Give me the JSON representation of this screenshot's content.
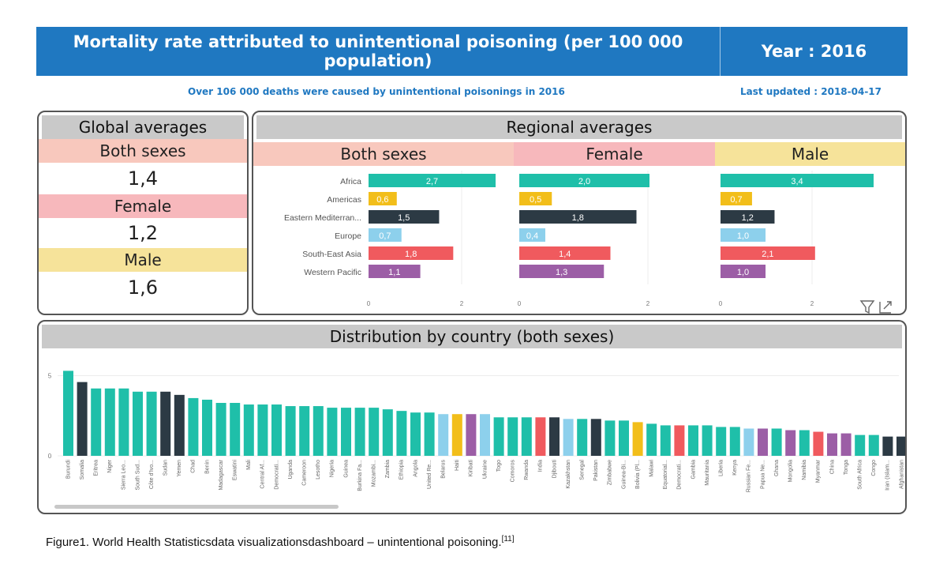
{
  "header": {
    "title": "Mortality rate attributed to unintentional poisoning (per 100 000 population)",
    "year": "Year : 2016"
  },
  "subtitle": "Over 106 000 deaths were caused by unintentional poisonings in 2016",
  "last_updated": "Last updated : 2018-04-17",
  "global": {
    "title": "Global averages",
    "both_label": "Both sexes",
    "both_value": "1,4",
    "female_label": "Female",
    "female_value": "1,2",
    "male_label": "Male",
    "male_value": "1,6"
  },
  "regional": {
    "title": "Regional averages",
    "both_label": "Both sexes",
    "female_label": "Female",
    "male_label": "Male"
  },
  "distribution": {
    "title": "Distribution by country (both sexes)"
  },
  "caption": {
    "text": "Figure1. World Health  Statisticsdata  visualizationsdashboard – unintentional  poisoning.",
    "ref": "[11]"
  },
  "colors": {
    "header": "#1f78c1",
    "Africa": "#1fbfa9",
    "Americas": "#f2be1a",
    "Eastern Mediterranean": "#2c3a44",
    "Europe": "#8dd0ec",
    "South-East Asia": "#f05a5e",
    "Western Pacific": "#9c5ea6"
  },
  "chart_data": [
    {
      "type": "bar",
      "orientation": "horizontal",
      "group": "Both sexes",
      "categories": [
        "Africa",
        "Americas",
        "Eastern Mediterran...",
        "Europe",
        "South-East Asia",
        "Western Pacific"
      ],
      "values": [
        2.7,
        0.6,
        1.5,
        0.7,
        1.8,
        1.1
      ],
      "labels": [
        "2,7",
        "0,6",
        "1,5",
        "0,7",
        "1,8",
        "1,1"
      ],
      "xticks": [
        "0",
        "2"
      ],
      "xlim": [
        0,
        2.8
      ]
    },
    {
      "type": "bar",
      "orientation": "horizontal",
      "group": "Female",
      "categories": [
        "Africa",
        "Americas",
        "Eastern Mediterran...",
        "Europe",
        "South-East Asia",
        "Western Pacific"
      ],
      "values": [
        2.0,
        0.5,
        1.8,
        0.4,
        1.4,
        1.3
      ],
      "labels": [
        "2,0",
        "0,5",
        "1,8",
        "0,4",
        "1,4",
        "1,3"
      ],
      "xticks": [
        "0",
        "2"
      ],
      "xlim": [
        0,
        2.1
      ]
    },
    {
      "type": "bar",
      "orientation": "horizontal",
      "group": "Male",
      "categories": [
        "Africa",
        "Americas",
        "Eastern Mediterran...",
        "Europe",
        "South-East Asia",
        "Western Pacific"
      ],
      "values": [
        3.4,
        0.7,
        1.2,
        1.0,
        2.1,
        1.0
      ],
      "labels": [
        "3,4",
        "0,7",
        "1,2",
        "1,0",
        "2,1",
        "1,0"
      ],
      "xticks": [
        "0",
        "2"
      ],
      "xlim": [
        0,
        3.6
      ]
    },
    {
      "type": "bar",
      "title": "Distribution by country (both sexes)",
      "yticks": [
        "0",
        "5"
      ],
      "ylim": [
        0,
        6.5
      ],
      "categories": [
        "Burundi",
        "Somalia",
        "Eritrea",
        "Niger",
        "Sierra Leo...",
        "South Sud...",
        "Côte d'Ivo...",
        "Sudan",
        "Yemen",
        "Chad",
        "Benin",
        "Madagascar",
        "Eswatini",
        "Mali",
        "Central Af...",
        "Democrati...",
        "Uganda",
        "Cameroon",
        "Lesotho",
        "Nigeria",
        "Guinea",
        "Burkina Fa...",
        "Mozambi...",
        "Zambia",
        "Ethiopia",
        "Angola",
        "United Re...",
        "Belarus",
        "Haiti",
        "Kiribati",
        "Ukraine",
        "Togo",
        "Comoros",
        "Rwanda",
        "India",
        "Djibouti",
        "Kazakhstan",
        "Senegal",
        "Pakistan",
        "Zimbabwe",
        "Guinea-Bi...",
        "Bolivia (Pl...",
        "Malawi",
        "Equatorial...",
        "Democrati...",
        "Gambia",
        "Mauritania",
        "Liberia",
        "Kenya",
        "Russian Fe...",
        "Papua Ne...",
        "Ghana",
        "Mongolia",
        "Namibia",
        "Myanmar",
        "China",
        "Tonga",
        "South Africa",
        "Congo",
        "Iran (Islam...",
        "Afghanistan"
      ],
      "values": [
        5.3,
        4.6,
        4.2,
        4.2,
        4.2,
        4.0,
        4.0,
        4.0,
        3.8,
        3.6,
        3.5,
        3.3,
        3.3,
        3.2,
        3.2,
        3.2,
        3.1,
        3.1,
        3.1,
        3.0,
        3.0,
        3.0,
        3.0,
        2.9,
        2.8,
        2.7,
        2.7,
        2.6,
        2.6,
        2.6,
        2.6,
        2.4,
        2.4,
        2.4,
        2.4,
        2.4,
        2.3,
        2.3,
        2.3,
        2.2,
        2.2,
        2.1,
        2.0,
        1.9,
        1.9,
        1.9,
        1.9,
        1.8,
        1.8,
        1.7,
        1.7,
        1.7,
        1.6,
        1.6,
        1.5,
        1.4,
        1.4,
        1.3,
        1.3,
        1.2,
        1.2
      ],
      "regions": [
        "Africa",
        "Eastern Mediterranean",
        "Africa",
        "Africa",
        "Africa",
        "Africa",
        "Africa",
        "Eastern Mediterranean",
        "Eastern Mediterranean",
        "Africa",
        "Africa",
        "Africa",
        "Africa",
        "Africa",
        "Africa",
        "Africa",
        "Africa",
        "Africa",
        "Africa",
        "Africa",
        "Africa",
        "Africa",
        "Africa",
        "Africa",
        "Africa",
        "Africa",
        "Africa",
        "Europe",
        "Americas",
        "Western Pacific",
        "Europe",
        "Africa",
        "Africa",
        "Africa",
        "South-East Asia",
        "Eastern Mediterranean",
        "Europe",
        "Africa",
        "Eastern Mediterranean",
        "Africa",
        "Africa",
        "Americas",
        "Africa",
        "Africa",
        "South-East Asia",
        "Africa",
        "Africa",
        "Africa",
        "Africa",
        "Europe",
        "Western Pacific",
        "Africa",
        "Western Pacific",
        "Africa",
        "South-East Asia",
        "Western Pacific",
        "Western Pacific",
        "Africa",
        "Africa",
        "Eastern Mediterranean",
        "Eastern Mediterranean"
      ]
    }
  ]
}
